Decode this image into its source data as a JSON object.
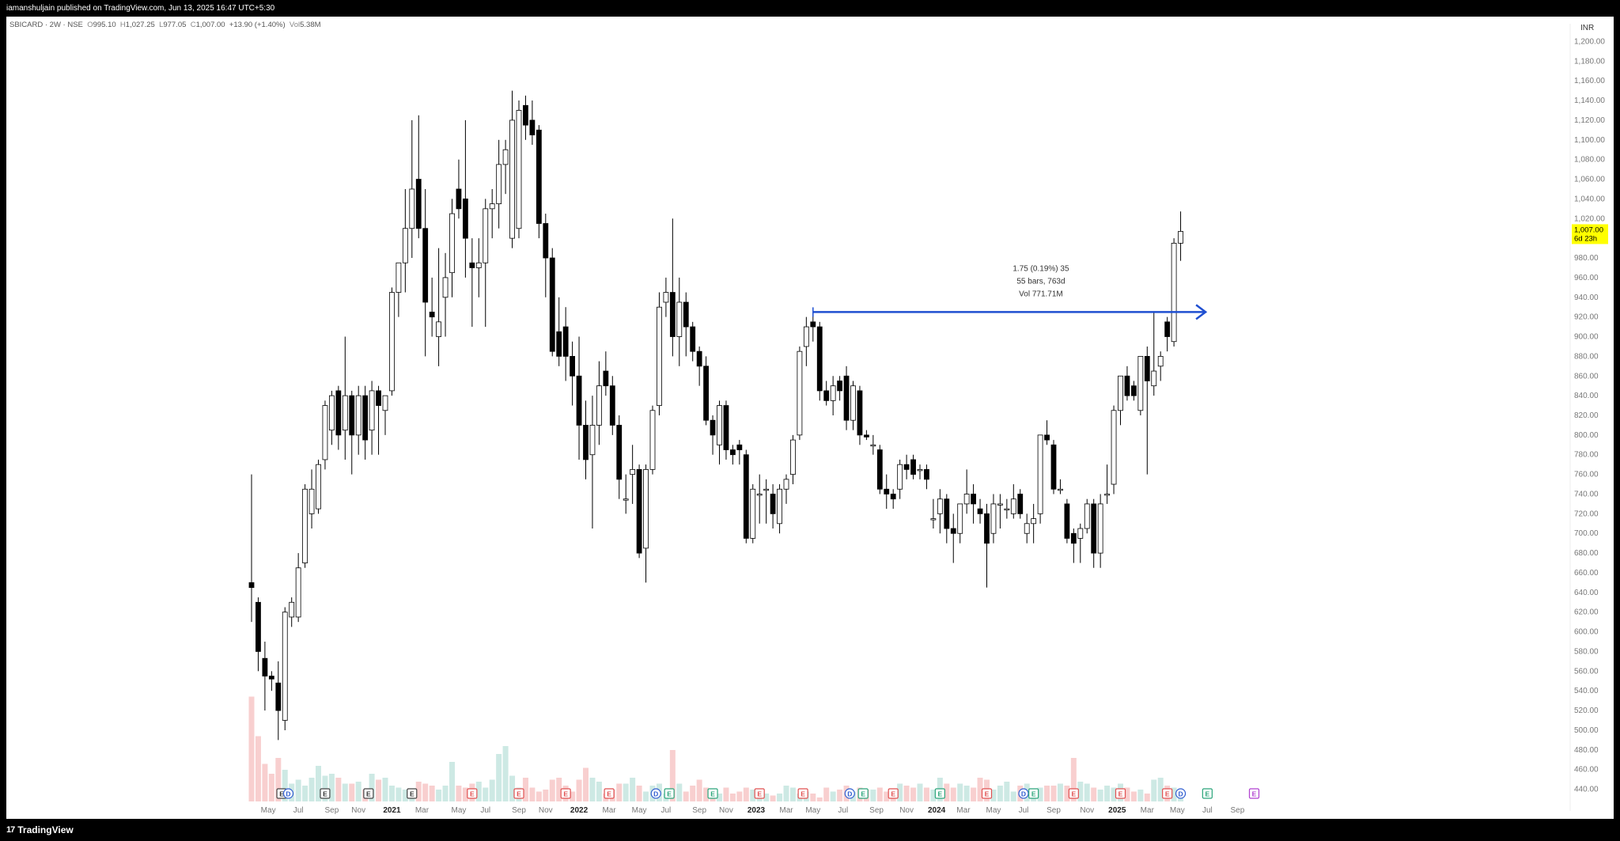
{
  "header": {
    "published_text": "iamanshuljain published on TradingView.com, Jun 13, 2025 16:47 UTC+5:30"
  },
  "legend": {
    "symbol": "SBICARD · 2W · NSE",
    "o_label": "O",
    "o_value": "995.10",
    "h_label": "H",
    "h_value": "1,027.25",
    "l_label": "L",
    "l_value": "977.05",
    "c_label": "C",
    "c_value": "1,007.00",
    "change": "+13.90 (+1.40%)",
    "vol_label": "Vol",
    "vol_value": "5.38M"
  },
  "currency": "INR",
  "price_tag": {
    "value": "1,007.00",
    "countdown": "6d 23h"
  },
  "measure": {
    "line1": "1.75 (0.19%) 35",
    "line2": "55 bars, 763d",
    "line3": "Vol 771.71M"
  },
  "footer": {
    "brand": "TradingView",
    "brand_mark": "17"
  },
  "colors": {
    "up_candle": "#ffffff",
    "down_candle": "#000000",
    "vol_up": "#cde9e4",
    "vol_down": "#f8cfcf",
    "measure_line": "#1f4fd1",
    "price_tag_bg": "#ffff00"
  },
  "chart_data": {
    "type": "candlestick",
    "ylim": [
      430,
      1210
    ],
    "y_ticks": [
      440,
      460,
      480,
      500,
      520,
      540,
      560,
      580,
      600,
      620,
      640,
      660,
      680,
      700,
      720,
      740,
      760,
      780,
      800,
      820,
      840,
      860,
      880,
      900,
      920,
      940,
      960,
      980,
      1000,
      1020,
      1040,
      1060,
      1080,
      1100,
      1120,
      1140,
      1160,
      1180,
      1200
    ],
    "y_tick_labels": [
      "440.00",
      "460.00",
      "480.00",
      "500.00",
      "520.00",
      "540.00",
      "560.00",
      "580.00",
      "600.00",
      "620.00",
      "640.00",
      "660.00",
      "680.00",
      "700.00",
      "720.00",
      "740.00",
      "760.00",
      "780.00",
      "800.00",
      "820.00",
      "840.00",
      "860.00",
      "880.00",
      "900.00",
      "920.00",
      "940.00",
      "960.00",
      "980.00",
      "1,000.00",
      "1,020.00",
      "1,040.00",
      "1,060.00",
      "1,080.00",
      "1,100.00",
      "1,120.00",
      "1,140.00",
      "1,160.00",
      "1,180.00",
      "1,200.00"
    ],
    "x_labels": [
      "May",
      "Jul",
      "Sep",
      "Nov",
      "2021",
      "Mar",
      "May",
      "Jul",
      "Sep",
      "Nov",
      "2022",
      "Mar",
      "May",
      "Jul",
      "Sep",
      "Nov",
      "2023",
      "Mar",
      "May",
      "Jul",
      "Sep",
      "Nov",
      "2024",
      "Mar",
      "May",
      "Jul",
      "Sep",
      "Nov",
      "2025",
      "Mar",
      "May",
      "Jul",
      "Sep"
    ],
    "x_label_bars": [
      2.5,
      7,
      12,
      16,
      21,
      25.5,
      31,
      35,
      40,
      44,
      49,
      53.5,
      58,
      62,
      67,
      71,
      75.5,
      80,
      84,
      88.5,
      93.5,
      98,
      102.5,
      106.5,
      111,
      115.5,
      120,
      125,
      129.5,
      134,
      138.5,
      143,
      147.5
    ],
    "measure_level": 925,
    "measure_from_bar": 84,
    "measure_to_bar": 138,
    "candles": [
      {
        "o": 650,
        "h": 760,
        "l": 610,
        "c": 645
      },
      {
        "o": 630,
        "h": 635,
        "l": 560,
        "c": 580
      },
      {
        "o": 573,
        "h": 590,
        "l": 520,
        "c": 555
      },
      {
        "o": 555,
        "h": 560,
        "l": 540,
        "c": 552
      },
      {
        "o": 548,
        "h": 570,
        "l": 490,
        "c": 520
      },
      {
        "o": 510,
        "h": 625,
        "l": 500,
        "c": 620
      },
      {
        "o": 615,
        "h": 635,
        "l": 605,
        "c": 630
      },
      {
        "o": 615,
        "h": 680,
        "l": 610,
        "c": 665
      },
      {
        "o": 670,
        "h": 750,
        "l": 665,
        "c": 745
      },
      {
        "o": 720,
        "h": 765,
        "l": 705,
        "c": 745
      },
      {
        "o": 725,
        "h": 775,
        "l": 720,
        "c": 770
      },
      {
        "o": 775,
        "h": 835,
        "l": 765,
        "c": 830
      },
      {
        "o": 805,
        "h": 845,
        "l": 790,
        "c": 840
      },
      {
        "o": 845,
        "h": 850,
        "l": 785,
        "c": 800
      },
      {
        "o": 805,
        "h": 900,
        "l": 775,
        "c": 840
      },
      {
        "o": 840,
        "h": 845,
        "l": 760,
        "c": 800
      },
      {
        "o": 800,
        "h": 850,
        "l": 780,
        "c": 840
      },
      {
        "o": 840,
        "h": 850,
        "l": 775,
        "c": 795
      },
      {
        "o": 805,
        "h": 855,
        "l": 780,
        "c": 845
      },
      {
        "o": 845,
        "h": 850,
        "l": 780,
        "c": 830
      },
      {
        "o": 825,
        "h": 840,
        "l": 800,
        "c": 840
      },
      {
        "o": 845,
        "h": 950,
        "l": 840,
        "c": 945
      },
      {
        "o": 945,
        "h": 975,
        "l": 920,
        "c": 975
      },
      {
        "o": 975,
        "h": 1050,
        "l": 945,
        "c": 1010
      },
      {
        "o": 1010,
        "h": 1120,
        "l": 980,
        "c": 1050
      },
      {
        "o": 1060,
        "h": 1125,
        "l": 1000,
        "c": 1010
      },
      {
        "o": 1010,
        "h": 1050,
        "l": 880,
        "c": 935
      },
      {
        "o": 925,
        "h": 960,
        "l": 900,
        "c": 920
      },
      {
        "o": 900,
        "h": 990,
        "l": 870,
        "c": 915
      },
      {
        "o": 940,
        "h": 985,
        "l": 900,
        "c": 960
      },
      {
        "o": 965,
        "h": 1040,
        "l": 940,
        "c": 1025
      },
      {
        "o": 1050,
        "h": 1080,
        "l": 1020,
        "c": 1030
      },
      {
        "o": 1040,
        "h": 1120,
        "l": 960,
        "c": 1000
      },
      {
        "o": 975,
        "h": 1000,
        "l": 910,
        "c": 970
      },
      {
        "o": 970,
        "h": 1000,
        "l": 940,
        "c": 975
      },
      {
        "o": 975,
        "h": 1040,
        "l": 910,
        "c": 1030
      },
      {
        "o": 1030,
        "h": 1050,
        "l": 1000,
        "c": 1035
      },
      {
        "o": 1035,
        "h": 1100,
        "l": 1010,
        "c": 1075
      },
      {
        "o": 1075,
        "h": 1100,
        "l": 1045,
        "c": 1090
      },
      {
        "o": 1000,
        "h": 1150,
        "l": 990,
        "c": 1120
      },
      {
        "o": 1010,
        "h": 1140,
        "l": 1000,
        "c": 1130
      },
      {
        "o": 1135,
        "h": 1145,
        "l": 1100,
        "c": 1115
      },
      {
        "o": 1120,
        "h": 1140,
        "l": 1095,
        "c": 1105
      },
      {
        "o": 1110,
        "h": 1115,
        "l": 1000,
        "c": 1015
      },
      {
        "o": 1015,
        "h": 1025,
        "l": 940,
        "c": 980
      },
      {
        "o": 980,
        "h": 990,
        "l": 880,
        "c": 885
      },
      {
        "o": 905,
        "h": 940,
        "l": 870,
        "c": 880
      },
      {
        "o": 910,
        "h": 930,
        "l": 855,
        "c": 880
      },
      {
        "o": 880,
        "h": 895,
        "l": 830,
        "c": 860
      },
      {
        "o": 860,
        "h": 900,
        "l": 775,
        "c": 810
      },
      {
        "o": 810,
        "h": 835,
        "l": 755,
        "c": 775
      },
      {
        "o": 780,
        "h": 840,
        "l": 705,
        "c": 810
      },
      {
        "o": 810,
        "h": 875,
        "l": 790,
        "c": 850
      },
      {
        "o": 865,
        "h": 885,
        "l": 840,
        "c": 850
      },
      {
        "o": 850,
        "h": 860,
        "l": 800,
        "c": 810
      },
      {
        "o": 810,
        "h": 820,
        "l": 735,
        "c": 755
      },
      {
        "o": 735,
        "h": 760,
        "l": 720,
        "c": 735
      },
      {
        "o": 760,
        "h": 790,
        "l": 730,
        "c": 765
      },
      {
        "o": 765,
        "h": 770,
        "l": 675,
        "c": 680
      },
      {
        "o": 685,
        "h": 770,
        "l": 650,
        "c": 765
      },
      {
        "o": 765,
        "h": 830,
        "l": 760,
        "c": 825
      },
      {
        "o": 830,
        "h": 945,
        "l": 820,
        "c": 930
      },
      {
        "o": 935,
        "h": 960,
        "l": 920,
        "c": 945
      },
      {
        "o": 945,
        "h": 1020,
        "l": 880,
        "c": 900
      },
      {
        "o": 900,
        "h": 960,
        "l": 870,
        "c": 935
      },
      {
        "o": 935,
        "h": 945,
        "l": 880,
        "c": 910
      },
      {
        "o": 910,
        "h": 915,
        "l": 875,
        "c": 885
      },
      {
        "o": 885,
        "h": 890,
        "l": 850,
        "c": 870
      },
      {
        "o": 870,
        "h": 880,
        "l": 810,
        "c": 815
      },
      {
        "o": 815,
        "h": 820,
        "l": 780,
        "c": 800
      },
      {
        "o": 790,
        "h": 835,
        "l": 770,
        "c": 830
      },
      {
        "o": 830,
        "h": 835,
        "l": 775,
        "c": 785
      },
      {
        "o": 785,
        "h": 790,
        "l": 770,
        "c": 780
      },
      {
        "o": 790,
        "h": 795,
        "l": 770,
        "c": 785
      },
      {
        "o": 780,
        "h": 785,
        "l": 690,
        "c": 695
      },
      {
        "o": 695,
        "h": 750,
        "l": 690,
        "c": 745
      },
      {
        "o": 740,
        "h": 760,
        "l": 710,
        "c": 740
      },
      {
        "o": 745,
        "h": 755,
        "l": 710,
        "c": 745
      },
      {
        "o": 740,
        "h": 750,
        "l": 705,
        "c": 720
      },
      {
        "o": 710,
        "h": 750,
        "l": 700,
        "c": 745
      },
      {
        "o": 745,
        "h": 760,
        "l": 730,
        "c": 755
      },
      {
        "o": 760,
        "h": 800,
        "l": 750,
        "c": 795
      },
      {
        "o": 800,
        "h": 890,
        "l": 795,
        "c": 885
      },
      {
        "o": 890,
        "h": 920,
        "l": 870,
        "c": 910
      },
      {
        "o": 915,
        "h": 925,
        "l": 895,
        "c": 910
      },
      {
        "o": 910,
        "h": 915,
        "l": 835,
        "c": 845
      },
      {
        "o": 845,
        "h": 855,
        "l": 830,
        "c": 835
      },
      {
        "o": 835,
        "h": 860,
        "l": 820,
        "c": 850
      },
      {
        "o": 855,
        "h": 860,
        "l": 835,
        "c": 845
      },
      {
        "o": 860,
        "h": 870,
        "l": 805,
        "c": 815
      },
      {
        "o": 815,
        "h": 855,
        "l": 805,
        "c": 850
      },
      {
        "o": 845,
        "h": 850,
        "l": 790,
        "c": 800
      },
      {
        "o": 800,
        "h": 805,
        "l": 795,
        "c": 798
      },
      {
        "o": 790,
        "h": 800,
        "l": 780,
        "c": 790
      },
      {
        "o": 785,
        "h": 790,
        "l": 740,
        "c": 745
      },
      {
        "o": 745,
        "h": 760,
        "l": 725,
        "c": 740
      },
      {
        "o": 740,
        "h": 745,
        "l": 725,
        "c": 735
      },
      {
        "o": 745,
        "h": 775,
        "l": 735,
        "c": 770
      },
      {
        "o": 770,
        "h": 780,
        "l": 755,
        "c": 765
      },
      {
        "o": 775,
        "h": 780,
        "l": 755,
        "c": 760
      },
      {
        "o": 765,
        "h": 770,
        "l": 755,
        "c": 765
      },
      {
        "o": 765,
        "h": 770,
        "l": 745,
        "c": 755
      },
      {
        "o": 715,
        "h": 735,
        "l": 705,
        "c": 715
      },
      {
        "o": 720,
        "h": 745,
        "l": 700,
        "c": 735
      },
      {
        "o": 735,
        "h": 740,
        "l": 690,
        "c": 705
      },
      {
        "o": 705,
        "h": 720,
        "l": 670,
        "c": 700
      },
      {
        "o": 700,
        "h": 730,
        "l": 690,
        "c": 730
      },
      {
        "o": 730,
        "h": 765,
        "l": 720,
        "c": 740
      },
      {
        "o": 740,
        "h": 750,
        "l": 710,
        "c": 730
      },
      {
        "o": 725,
        "h": 735,
        "l": 710,
        "c": 720
      },
      {
        "o": 720,
        "h": 730,
        "l": 645,
        "c": 690
      },
      {
        "o": 700,
        "h": 740,
        "l": 690,
        "c": 730
      },
      {
        "o": 730,
        "h": 740,
        "l": 705,
        "c": 730
      },
      {
        "o": 725,
        "h": 735,
        "l": 715,
        "c": 725
      },
      {
        "o": 720,
        "h": 750,
        "l": 715,
        "c": 735
      },
      {
        "o": 740,
        "h": 745,
        "l": 715,
        "c": 720
      },
      {
        "o": 700,
        "h": 720,
        "l": 690,
        "c": 710
      },
      {
        "o": 710,
        "h": 730,
        "l": 690,
        "c": 715
      },
      {
        "o": 720,
        "h": 800,
        "l": 710,
        "c": 800
      },
      {
        "o": 800,
        "h": 815,
        "l": 790,
        "c": 795
      },
      {
        "o": 790,
        "h": 795,
        "l": 740,
        "c": 745
      },
      {
        "o": 745,
        "h": 755,
        "l": 740,
        "c": 745
      },
      {
        "o": 730,
        "h": 735,
        "l": 690,
        "c": 695
      },
      {
        "o": 700,
        "h": 705,
        "l": 670,
        "c": 690
      },
      {
        "o": 695,
        "h": 710,
        "l": 670,
        "c": 705
      },
      {
        "o": 705,
        "h": 735,
        "l": 700,
        "c": 730
      },
      {
        "o": 730,
        "h": 735,
        "l": 665,
        "c": 680
      },
      {
        "o": 680,
        "h": 740,
        "l": 665,
        "c": 730
      },
      {
        "o": 740,
        "h": 770,
        "l": 730,
        "c": 740
      },
      {
        "o": 750,
        "h": 830,
        "l": 740,
        "c": 825
      },
      {
        "o": 825,
        "h": 860,
        "l": 810,
        "c": 860
      },
      {
        "o": 860,
        "h": 870,
        "l": 835,
        "c": 840
      },
      {
        "o": 850,
        "h": 855,
        "l": 835,
        "c": 840
      },
      {
        "o": 825,
        "h": 880,
        "l": 820,
        "c": 880
      },
      {
        "o": 880,
        "h": 890,
        "l": 760,
        "c": 855
      },
      {
        "o": 850,
        "h": 925,
        "l": 840,
        "c": 865
      },
      {
        "o": 870,
        "h": 885,
        "l": 855,
        "c": 880
      },
      {
        "o": 915,
        "h": 920,
        "l": 885,
        "c": 900
      },
      {
        "o": 895,
        "h": 1000,
        "l": 890,
        "c": 995
      },
      {
        "o": 995,
        "h": 1027.25,
        "l": 977.05,
        "c": 1007
      }
    ],
    "volume": [
      265,
      165,
      95,
      70,
      110,
      80,
      45,
      55,
      40,
      60,
      90,
      65,
      70,
      60,
      45,
      45,
      50,
      30,
      70,
      55,
      60,
      40,
      35,
      30,
      25,
      50,
      45,
      40,
      30,
      40,
      100,
      40,
      35,
      45,
      50,
      35,
      55,
      120,
      140,
      65,
      35,
      60,
      35,
      25,
      30,
      55,
      60,
      40,
      25,
      55,
      85,
      60,
      50,
      20,
      30,
      45,
      45,
      60,
      40,
      25,
      40,
      45,
      20,
      130,
      45,
      25,
      40,
      55,
      35,
      30,
      20,
      35,
      20,
      25,
      35,
      30,
      25,
      20,
      15,
      20,
      40,
      35,
      20,
      25,
      20,
      10,
      35,
      25,
      30,
      40,
      25,
      35,
      30,
      30,
      35,
      25,
      25,
      45,
      40,
      35,
      45,
      35,
      30,
      60,
      45,
      35,
      45,
      40,
      35,
      60,
      55,
      30,
      40,
      50,
      25,
      40,
      45,
      20,
      35,
      40,
      40,
      45,
      40,
      110,
      50,
      45,
      35,
      30,
      40,
      35,
      45,
      35,
      25,
      30,
      20,
      55,
      60,
      40,
      35,
      30,
      35,
      25,
      40,
      30,
      15,
      20
    ]
  },
  "events": [
    {
      "bar": 4.5,
      "letter": "E",
      "kind": "earn-neutral"
    },
    {
      "bar": 5.5,
      "letter": "D",
      "kind": "div"
    },
    {
      "bar": 11,
      "letter": "E",
      "kind": "earn-neutral"
    },
    {
      "bar": 17.5,
      "letter": "E",
      "kind": "earn-neutral"
    },
    {
      "bar": 24,
      "letter": "E",
      "kind": "earn-neutral"
    },
    {
      "bar": 33,
      "letter": "E",
      "kind": "earn-red"
    },
    {
      "bar": 40,
      "letter": "E",
      "kind": "earn-red"
    },
    {
      "bar": 47,
      "letter": "E",
      "kind": "earn-red"
    },
    {
      "bar": 53.5,
      "letter": "E",
      "kind": "earn-red"
    },
    {
      "bar": 60.5,
      "letter": "D",
      "kind": "div"
    },
    {
      "bar": 62.5,
      "letter": "E",
      "kind": "earn-green"
    },
    {
      "bar": 69,
      "letter": "E",
      "kind": "earn-green"
    },
    {
      "bar": 76,
      "letter": "E",
      "kind": "earn-red"
    },
    {
      "bar": 82.5,
      "letter": "E",
      "kind": "earn-red"
    },
    {
      "bar": 89.5,
      "letter": "D",
      "kind": "div"
    },
    {
      "bar": 91.5,
      "letter": "E",
      "kind": "earn-green"
    },
    {
      "bar": 96,
      "letter": "E",
      "kind": "earn-red"
    },
    {
      "bar": 103,
      "letter": "E",
      "kind": "earn-green"
    },
    {
      "bar": 110,
      "letter": "E",
      "kind": "earn-red"
    },
    {
      "bar": 115.5,
      "letter": "D",
      "kind": "div"
    },
    {
      "bar": 117,
      "letter": "E",
      "kind": "earn-green"
    },
    {
      "bar": 123,
      "letter": "E",
      "kind": "earn-red"
    },
    {
      "bar": 130,
      "letter": "E",
      "kind": "earn-red"
    },
    {
      "bar": 137,
      "letter": "E",
      "kind": "earn-red"
    },
    {
      "bar": 139,
      "letter": "D",
      "kind": "div"
    },
    {
      "bar": 143,
      "letter": "E",
      "kind": "earn-green"
    },
    {
      "bar": 150,
      "letter": "E",
      "kind": "earn-future"
    }
  ]
}
